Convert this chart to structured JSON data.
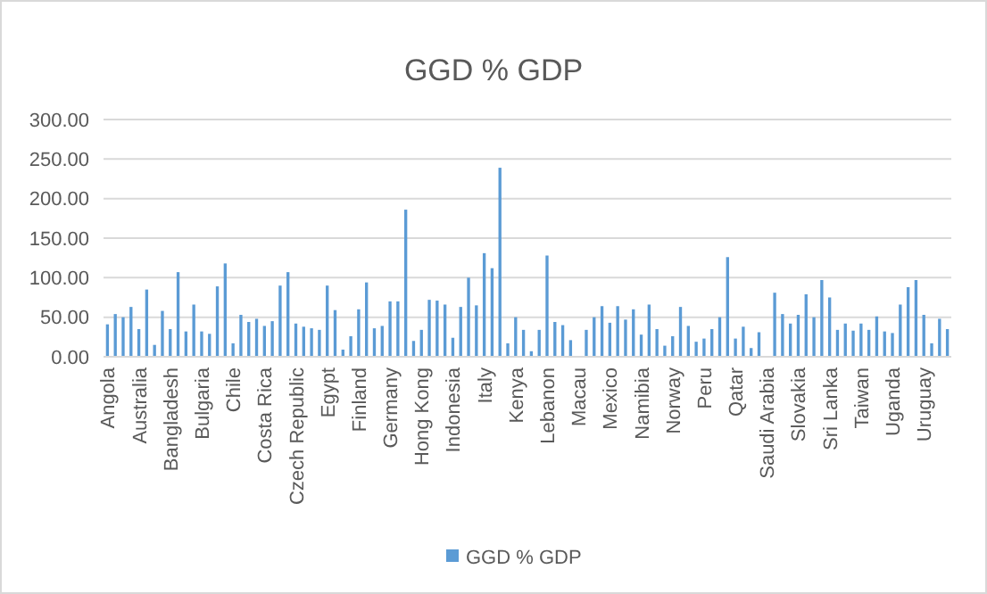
{
  "chart_data": {
    "type": "bar",
    "title": "GGD % GDP",
    "categories": [
      "Angola",
      null,
      null,
      null,
      "Australia",
      null,
      null,
      null,
      "Bangladesh",
      null,
      null,
      null,
      "Bulgaria",
      null,
      null,
      null,
      "Chile",
      null,
      null,
      null,
      "Costa Rica",
      null,
      null,
      null,
      "Czech Republic",
      null,
      null,
      null,
      "Egypt",
      null,
      null,
      null,
      "Finland",
      null,
      null,
      null,
      "Germany",
      null,
      null,
      null,
      "Hong Kong",
      null,
      null,
      null,
      "Indonesia",
      null,
      null,
      null,
      "Italy",
      null,
      null,
      null,
      "Kenya",
      null,
      null,
      null,
      "Lebanon",
      null,
      null,
      null,
      "Macau",
      null,
      null,
      null,
      "Mexico",
      null,
      null,
      null,
      "Namibia",
      null,
      null,
      null,
      "Norway",
      null,
      null,
      null,
      "Peru",
      null,
      null,
      null,
      "Qatar",
      null,
      null,
      null,
      "Saudi Arabia",
      null,
      null,
      null,
      "Slovakia",
      null,
      null,
      null,
      "Sri Lanka",
      null,
      null,
      null,
      "Taiwan",
      null,
      null,
      null,
      "Uganda",
      null,
      null,
      null,
      "Uruguay",
      null,
      null,
      null
    ],
    "series": [
      {
        "name": "GGD % GDP",
        "color": "#5b9bd5",
        "values": [
          41,
          54,
          50,
          63,
          35,
          85,
          15,
          58,
          35,
          107,
          32,
          66,
          32,
          29,
          89,
          118,
          17,
          53,
          44,
          48,
          39,
          45,
          90,
          107,
          42,
          38,
          36,
          34,
          90,
          59,
          9,
          26,
          60,
          94,
          36,
          39,
          70,
          70,
          186,
          20,
          34,
          72,
          71,
          66,
          24,
          63,
          100,
          65,
          131,
          112,
          239,
          17,
          50,
          34,
          7,
          34,
          128,
          44,
          40,
          21,
          null,
          34,
          50,
          64,
          43,
          64,
          47,
          60,
          28,
          66,
          35,
          14,
          26,
          63,
          39,
          19,
          23,
          35,
          50,
          126,
          23,
          38,
          11,
          31,
          null,
          81,
          54,
          42,
          53,
          79,
          50,
          97,
          75,
          34,
          42,
          33,
          42,
          34,
          51,
          32,
          30,
          66,
          88,
          97,
          53,
          17,
          48,
          35
        ]
      }
    ],
    "ylim": [
      0,
      300
    ],
    "yticks": [
      {
        "value": 0,
        "label": "0.00"
      },
      {
        "value": 50,
        "label": "50.00"
      },
      {
        "value": 100,
        "label": "100.00"
      },
      {
        "value": 150,
        "label": "150.00"
      },
      {
        "value": 200,
        "label": "200.00"
      },
      {
        "value": 250,
        "label": "250.00"
      },
      {
        "value": 300,
        "label": "300.00"
      }
    ],
    "grid": "y",
    "legend": "bottom"
  }
}
